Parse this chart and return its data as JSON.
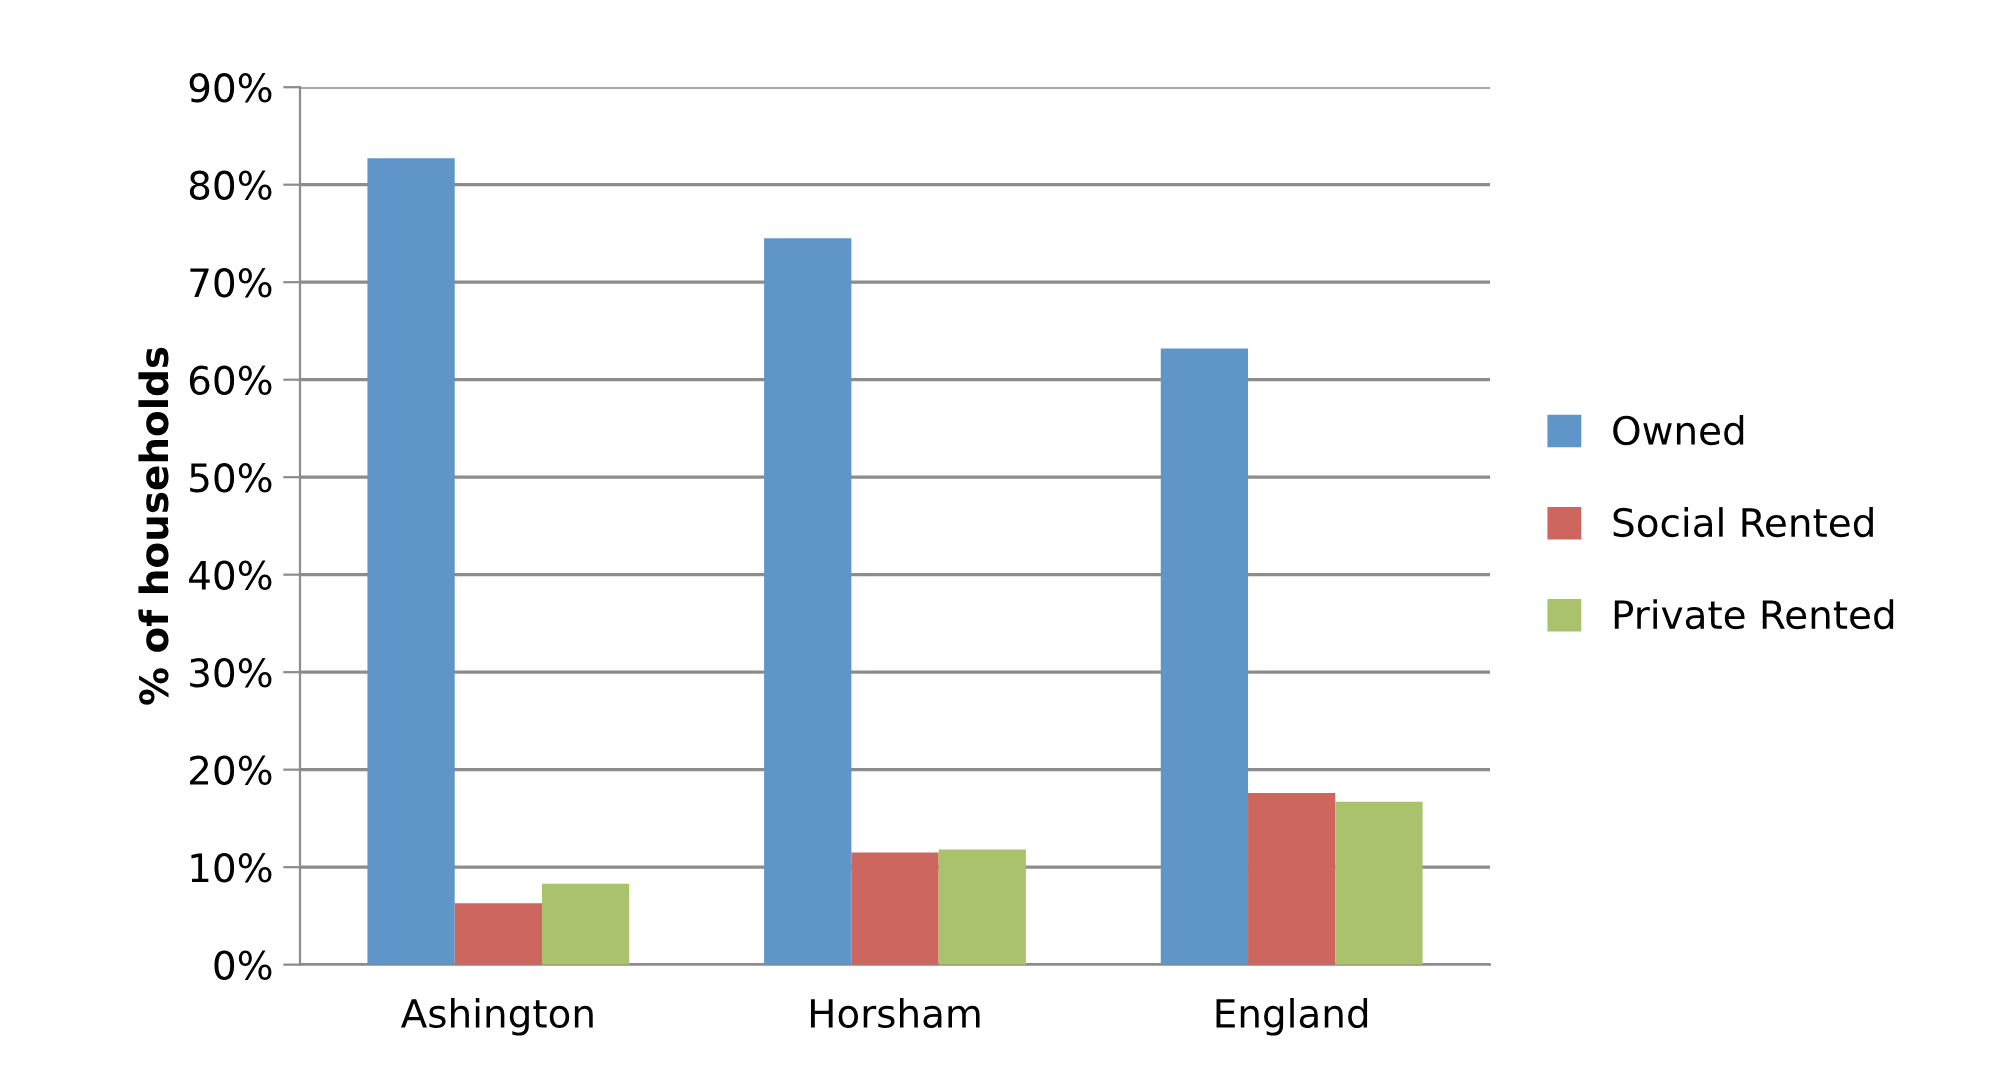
{
  "chart_data": {
    "type": "bar",
    "ylabel": "% of households",
    "categories": [
      "Ashington",
      "Horsham",
      "England"
    ],
    "series": [
      {
        "name": "Owned",
        "color": "#5f95c8",
        "values": [
          82.7,
          74.5,
          63.2
        ]
      },
      {
        "name": "Social Rented",
        "color": "#cc665e",
        "values": [
          6.3,
          11.5,
          17.6
        ]
      },
      {
        "name": "Private Rented",
        "color": "#a9c26b",
        "values": [
          8.3,
          11.8,
          16.7
        ]
      }
    ],
    "ylim": [
      0,
      90
    ],
    "yticks": [
      {
        "value": 0,
        "label": "0%"
      },
      {
        "value": 10,
        "label": "10%"
      },
      {
        "value": 20,
        "label": "20%"
      },
      {
        "value": 30,
        "label": "30%"
      },
      {
        "value": 40,
        "label": "40%"
      },
      {
        "value": 50,
        "label": "50%"
      },
      {
        "value": 60,
        "label": "60%"
      },
      {
        "value": 70,
        "label": "70%"
      },
      {
        "value": 80,
        "label": "80%"
      },
      {
        "value": 90,
        "label": "90%"
      }
    ],
    "grid": "y",
    "legend": "right"
  }
}
